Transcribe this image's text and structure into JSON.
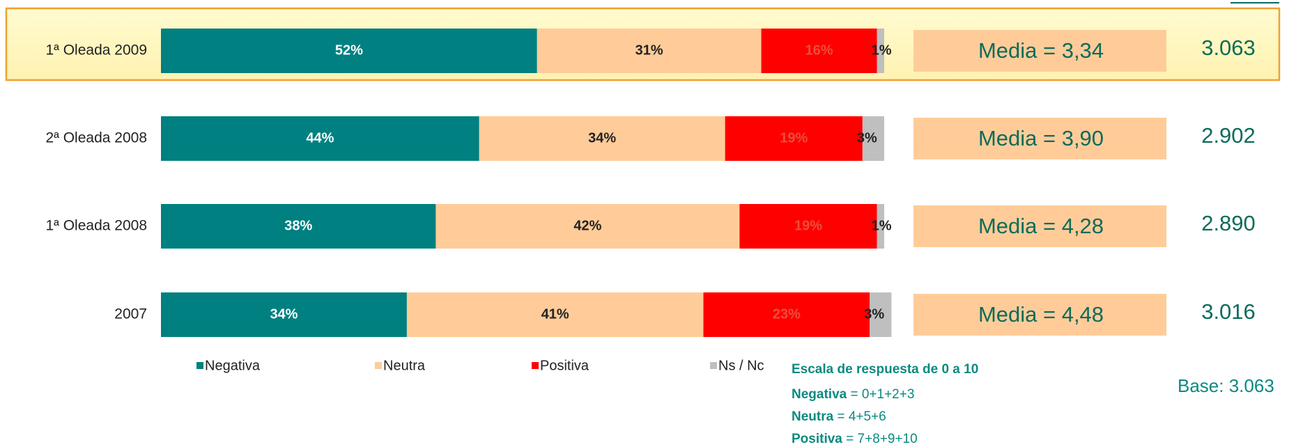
{
  "chart_data": {
    "type": "stacked-bar-horizontal",
    "categories": [
      "1ª Oleada 2009",
      "2ª Oleada 2008",
      "1ª Oleada 2008",
      "2007"
    ],
    "xlim": [
      0,
      100
    ],
    "series": [
      {
        "name": "Negativa",
        "color": "#008080",
        "values": [
          52,
          44,
          38,
          34
        ],
        "value_labels": [
          "52%",
          "44%",
          "38%",
          "34%"
        ]
      },
      {
        "name": "Neutra",
        "color": "#FFCC99",
        "values": [
          31,
          34,
          42,
          41
        ],
        "value_labels": [
          "31%",
          "34%",
          "42%",
          "41%"
        ]
      },
      {
        "name": "Positiva",
        "color": "#FF0000",
        "values": [
          16,
          19,
          19,
          23
        ],
        "value_labels": [
          "16%",
          "19%",
          "19%",
          "23%"
        ]
      },
      {
        "name": "Ns / Nc",
        "color": "#BFBFBF",
        "values": [
          1,
          3,
          1,
          3
        ],
        "value_labels": [
          "1%",
          "3%",
          "1%",
          "3%"
        ]
      }
    ],
    "media_labels": [
      "Media = 3,34",
      "Media = 3,90",
      "Media = 4,28",
      "Media = 4,48"
    ],
    "bases": [
      "3.063",
      "2.902",
      "2.890",
      "3.016"
    ],
    "scale_title": "Escala de respuesta  de 0 a 10",
    "scale_notes": [
      {
        "label": "Negativa",
        "text": "= 0+1+2+3"
      },
      {
        "label": "Neutra",
        "text": "= 4+5+6"
      },
      {
        "label": "Positiva",
        "text": "= 7+8+9+10"
      }
    ],
    "base_note": "Base: 3.063"
  }
}
